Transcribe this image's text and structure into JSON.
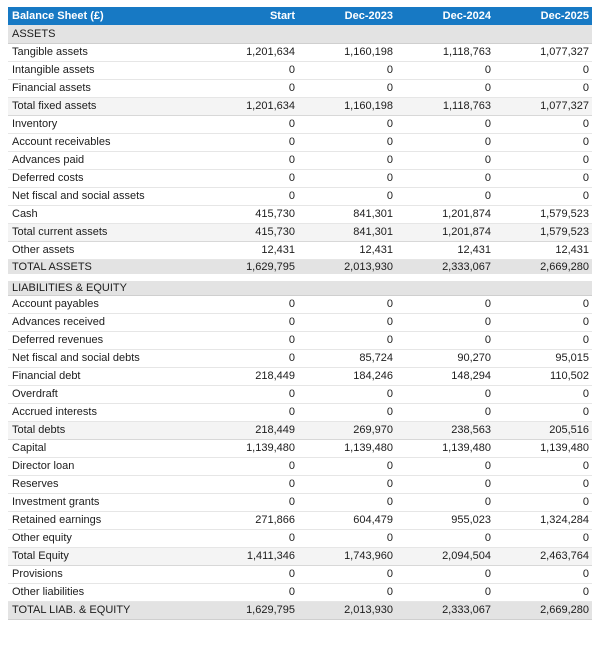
{
  "colors": {
    "header_bg": "#1779c4",
    "header_text": "#ffffff",
    "section_bg": "#e3e3e3",
    "subtotal_bg": "#f4f4f4",
    "total_bg": "#e3e3e3",
    "row_border": "#e6e6e6",
    "strong_border": "#cfcfcf",
    "text_color": "#1c1c1c",
    "page_bg": "#ffffff"
  },
  "table": {
    "title": "Balance Sheet (£)",
    "columns": [
      "Start",
      "Dec-2023",
      "Dec-2024",
      "Dec-2025"
    ],
    "rows": [
      {
        "type": "section",
        "label": "ASSETS",
        "values": [
          "",
          "",
          "",
          ""
        ]
      },
      {
        "type": "normal",
        "label": "Tangible assets",
        "values": [
          "1,201,634",
          "1,160,198",
          "1,118,763",
          "1,077,327"
        ]
      },
      {
        "type": "normal",
        "label": "Intangible assets",
        "values": [
          "0",
          "0",
          "0",
          "0"
        ]
      },
      {
        "type": "normal",
        "label": "Financial assets",
        "values": [
          "0",
          "0",
          "0",
          "0"
        ]
      },
      {
        "type": "subtotal",
        "label": "Total fixed assets",
        "values": [
          "1,201,634",
          "1,160,198",
          "1,118,763",
          "1,077,327"
        ]
      },
      {
        "type": "normal",
        "label": "Inventory",
        "values": [
          "0",
          "0",
          "0",
          "0"
        ]
      },
      {
        "type": "normal",
        "label": "Account receivables",
        "values": [
          "0",
          "0",
          "0",
          "0"
        ]
      },
      {
        "type": "normal",
        "label": "Advances paid",
        "values": [
          "0",
          "0",
          "0",
          "0"
        ]
      },
      {
        "type": "normal",
        "label": "Deferred costs",
        "values": [
          "0",
          "0",
          "0",
          "0"
        ]
      },
      {
        "type": "normal",
        "label": "Net fiscal and social assets",
        "values": [
          "0",
          "0",
          "0",
          "0"
        ]
      },
      {
        "type": "normal",
        "label": "Cash",
        "values": [
          "415,730",
          "841,301",
          "1,201,874",
          "1,579,523"
        ]
      },
      {
        "type": "subtotal",
        "label": "Total current assets",
        "values": [
          "415,730",
          "841,301",
          "1,201,874",
          "1,579,523"
        ]
      },
      {
        "type": "normal",
        "label": "Other assets",
        "values": [
          "12,431",
          "12,431",
          "12,431",
          "12,431"
        ]
      },
      {
        "type": "total",
        "label": "TOTAL ASSETS",
        "values": [
          "1,629,795",
          "2,013,930",
          "2,333,067",
          "2,669,280"
        ]
      },
      {
        "type": "section",
        "label": "LIABILITIES & EQUITY",
        "values": [
          "",
          "",
          "",
          ""
        ]
      },
      {
        "type": "normal",
        "label": "Account payables",
        "values": [
          "0",
          "0",
          "0",
          "0"
        ]
      },
      {
        "type": "normal",
        "label": "Advances received",
        "values": [
          "0",
          "0",
          "0",
          "0"
        ]
      },
      {
        "type": "normal",
        "label": "Deferred revenues",
        "values": [
          "0",
          "0",
          "0",
          "0"
        ]
      },
      {
        "type": "normal",
        "label": "Net fiscal and social debts",
        "values": [
          "0",
          "85,724",
          "90,270",
          "95,015"
        ]
      },
      {
        "type": "normal",
        "label": "Financial debt",
        "values": [
          "218,449",
          "184,246",
          "148,294",
          "110,502"
        ]
      },
      {
        "type": "normal",
        "label": "Overdraft",
        "values": [
          "0",
          "0",
          "0",
          "0"
        ]
      },
      {
        "type": "normal",
        "label": "Accrued interests",
        "values": [
          "0",
          "0",
          "0",
          "0"
        ]
      },
      {
        "type": "subtotal",
        "label": "Total debts",
        "values": [
          "218,449",
          "269,970",
          "238,563",
          "205,516"
        ]
      },
      {
        "type": "normal",
        "label": "Capital",
        "values": [
          "1,139,480",
          "1,139,480",
          "1,139,480",
          "1,139,480"
        ]
      },
      {
        "type": "normal",
        "label": "Director loan",
        "values": [
          "0",
          "0",
          "0",
          "0"
        ]
      },
      {
        "type": "normal",
        "label": "Reserves",
        "values": [
          "0",
          "0",
          "0",
          "0"
        ]
      },
      {
        "type": "normal",
        "label": "Investment grants",
        "values": [
          "0",
          "0",
          "0",
          "0"
        ]
      },
      {
        "type": "normal",
        "label": "Retained earnings",
        "values": [
          "271,866",
          "604,479",
          "955,023",
          "1,324,284"
        ]
      },
      {
        "type": "normal",
        "label": "Other equity",
        "values": [
          "0",
          "0",
          "0",
          "0"
        ]
      },
      {
        "type": "subtotal",
        "label": "Total Equity",
        "values": [
          "1,411,346",
          "1,743,960",
          "2,094,504",
          "2,463,764"
        ]
      },
      {
        "type": "normal",
        "label": "Provisions",
        "values": [
          "0",
          "0",
          "0",
          "0"
        ]
      },
      {
        "type": "normal",
        "label": "Other liabilities",
        "values": [
          "0",
          "0",
          "0",
          "0"
        ]
      },
      {
        "type": "total",
        "label": "TOTAL LIAB. & EQUITY",
        "values": [
          "1,629,795",
          "2,013,930",
          "2,333,067",
          "2,669,280"
        ]
      }
    ]
  }
}
